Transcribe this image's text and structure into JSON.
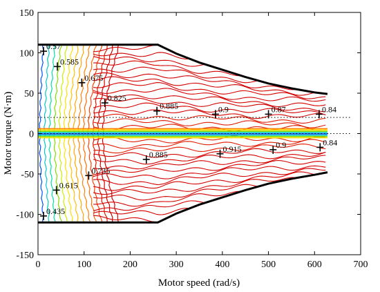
{
  "chart_data": {
    "type": "contour",
    "title": "",
    "xlabel": "Motor speed (rad/s)",
    "ylabel": "Motor torque (N·m)",
    "xlim": [
      0,
      700
    ],
    "ylim": [
      -150,
      150
    ],
    "x_ticks": [
      0,
      100,
      200,
      300,
      400,
      500,
      600,
      700
    ],
    "y_ticks": [
      150,
      100,
      50,
      0,
      -50,
      -100,
      -150
    ],
    "grid": false,
    "legend": "none",
    "colors": {
      "envelope": "#000000",
      "contour_high": "#d40000",
      "contour_mid": "#ff6a00",
      "contour_orange": "#ffa500",
      "contour_yellow": "#ffe000",
      "contour_green": "#7fdc00",
      "contour_cyan": "#00c8c8",
      "contour_blue": "#0050ff"
    },
    "envelope": {
      "upper": [
        [
          0,
          110
        ],
        [
          260,
          110
        ],
        [
          300,
          99
        ],
        [
          350,
          88
        ],
        [
          400,
          79
        ],
        [
          450,
          70
        ],
        [
          500,
          62
        ],
        [
          550,
          56
        ],
        [
          600,
          51
        ],
        [
          628,
          49
        ]
      ],
      "lower": [
        [
          0,
          -110
        ],
        [
          260,
          -110
        ],
        [
          300,
          -99
        ],
        [
          350,
          -88
        ],
        [
          400,
          -79
        ],
        [
          450,
          -70
        ],
        [
          500,
          -62
        ],
        [
          550,
          -56
        ],
        [
          600,
          -51
        ],
        [
          628,
          -48
        ]
      ]
    },
    "reference_lines": [
      {
        "style": "dotted",
        "y": 20,
        "x": [
          0,
          680
        ]
      },
      {
        "style": "dotted",
        "y": 0,
        "x": [
          0,
          680
        ]
      }
    ],
    "efficiency_labels": [
      {
        "x": 12,
        "y": 102,
        "text": "0.57"
      },
      {
        "x": 42,
        "y": 83,
        "text": "0.585"
      },
      {
        "x": 95,
        "y": 63,
        "text": "0.675"
      },
      {
        "x": 145,
        "y": 38,
        "text": "0.825"
      },
      {
        "x": 258,
        "y": 28,
        "text": "0.885"
      },
      {
        "x": 385,
        "y": 24,
        "text": "0.9"
      },
      {
        "x": 500,
        "y": 24,
        "text": "0.87"
      },
      {
        "x": 610,
        "y": 24,
        "text": "0.84"
      },
      {
        "x": 235,
        "y": -32,
        "text": "0.885"
      },
      {
        "x": 395,
        "y": -25,
        "text": "0.915"
      },
      {
        "x": 510,
        "y": -20,
        "text": "0.9"
      },
      {
        "x": 612,
        "y": -17,
        "text": "0.84"
      },
      {
        "x": 110,
        "y": -52,
        "text": "0.735"
      },
      {
        "x": 40,
        "y": -70,
        "text": "0.615"
      },
      {
        "x": 12,
        "y": -102,
        "text": "0.435"
      }
    ],
    "contour_color_order": [
      "#d40000",
      "#e01a00",
      "#ff6a00",
      "#ffa500",
      "#ffe000",
      "#7fdc00",
      "#00c8c8",
      "#0050ff"
    ]
  }
}
